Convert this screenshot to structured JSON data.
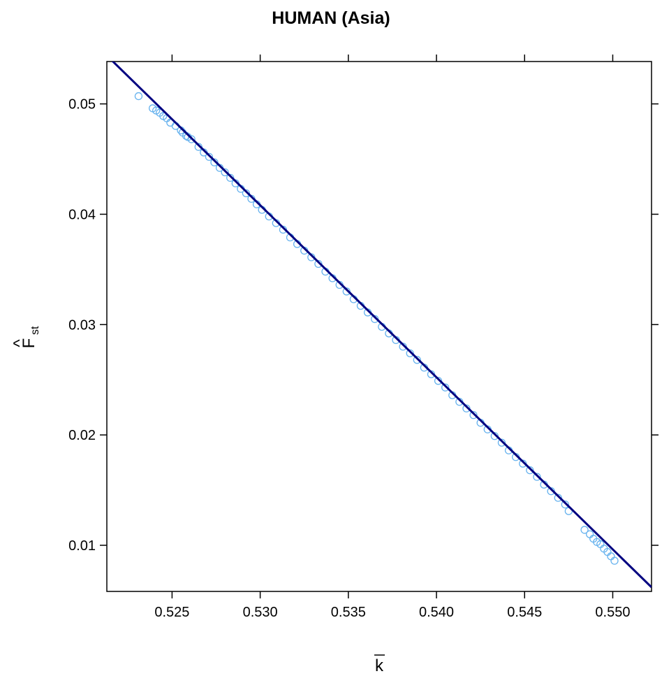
{
  "chart_data": {
    "type": "scatter",
    "title": "HUMAN (Asia)",
    "xlabel": "k",
    "xlabel_decoration": "overline",
    "ylabel": "F",
    "ylabel_hat": "^",
    "ylabel_subscript": "st",
    "xlim": [
      0.5213,
      0.5522
    ],
    "ylim": [
      0.00582,
      0.05384
    ],
    "x_ticks": [
      0.525,
      0.53,
      0.535,
      0.54,
      0.545,
      0.55
    ],
    "x_tick_labels": [
      "0.525",
      "0.530",
      "0.535",
      "0.540",
      "0.545",
      "0.550"
    ],
    "y_ticks": [
      0.01,
      0.02,
      0.03,
      0.04,
      0.05
    ],
    "y_tick_labels": [
      "0.01",
      "0.02",
      "0.03",
      "0.04",
      "0.05"
    ],
    "grid": false,
    "colors": {
      "points": "#66b2ee",
      "line": "#000080",
      "axis": "#000000"
    },
    "fit_line": {
      "slope": -1.5592,
      "intercept": 0.86719,
      "x_range": [
        0.5213,
        0.5522
      ]
    },
    "series": [
      {
        "marker": "open-circle",
        "x": [
          0.5231,
          0.5239,
          0.5241,
          0.5243,
          0.5245,
          0.5247,
          0.5249,
          0.5252,
          0.5255,
          0.5256,
          0.5258,
          0.5259,
          0.5261,
          0.5265,
          0.5268,
          0.5271,
          0.5274,
          0.5277,
          0.528,
          0.5283,
          0.5286,
          0.5289,
          0.5292,
          0.5295,
          0.5298,
          0.5301,
          0.5305,
          0.5309,
          0.5313,
          0.5317,
          0.5321,
          0.5325,
          0.5329,
          0.5333,
          0.5337,
          0.5341,
          0.5345,
          0.5349,
          0.5353,
          0.5357,
          0.5361,
          0.5365,
          0.5369,
          0.5373,
          0.5377,
          0.5381,
          0.5385,
          0.5389,
          0.5393,
          0.5397,
          0.5401,
          0.5405,
          0.5409,
          0.5413,
          0.5417,
          0.5421,
          0.5425,
          0.5429,
          0.5433,
          0.5437,
          0.5441,
          0.5445,
          0.5449,
          0.5453,
          0.5457,
          0.5461,
          0.5465,
          0.5469,
          0.5473,
          0.5475,
          0.5484,
          0.5487,
          0.5489,
          0.5491,
          0.5493,
          0.5495,
          0.5497,
          0.5499,
          0.5501
        ],
        "y": [
          0.0507,
          0.0496,
          0.0494,
          0.0492,
          0.0489,
          0.0487,
          0.0483,
          0.048,
          0.0476,
          0.0474,
          0.0471,
          0.047,
          0.0468,
          0.0461,
          0.0456,
          0.0452,
          0.0447,
          0.0442,
          0.0438,
          0.0433,
          0.0428,
          0.0423,
          0.0419,
          0.0414,
          0.0409,
          0.0404,
          0.0398,
          0.0392,
          0.0386,
          0.0379,
          0.0373,
          0.0367,
          0.0361,
          0.0355,
          0.0348,
          0.0342,
          0.0336,
          0.033,
          0.0323,
          0.0317,
          0.0311,
          0.0305,
          0.0298,
          0.0292,
          0.0286,
          0.028,
          0.0274,
          0.0268,
          0.0261,
          0.0255,
          0.0249,
          0.0243,
          0.0236,
          0.023,
          0.0224,
          0.0218,
          0.0211,
          0.0205,
          0.0199,
          0.0193,
          0.0186,
          0.018,
          0.0174,
          0.0168,
          0.0162,
          0.0155,
          0.0149,
          0.0143,
          0.0137,
          0.0131,
          0.0114,
          0.011,
          0.0106,
          0.0103,
          0.0101,
          0.0097,
          0.0094,
          0.009,
          0.0086
        ]
      }
    ]
  }
}
